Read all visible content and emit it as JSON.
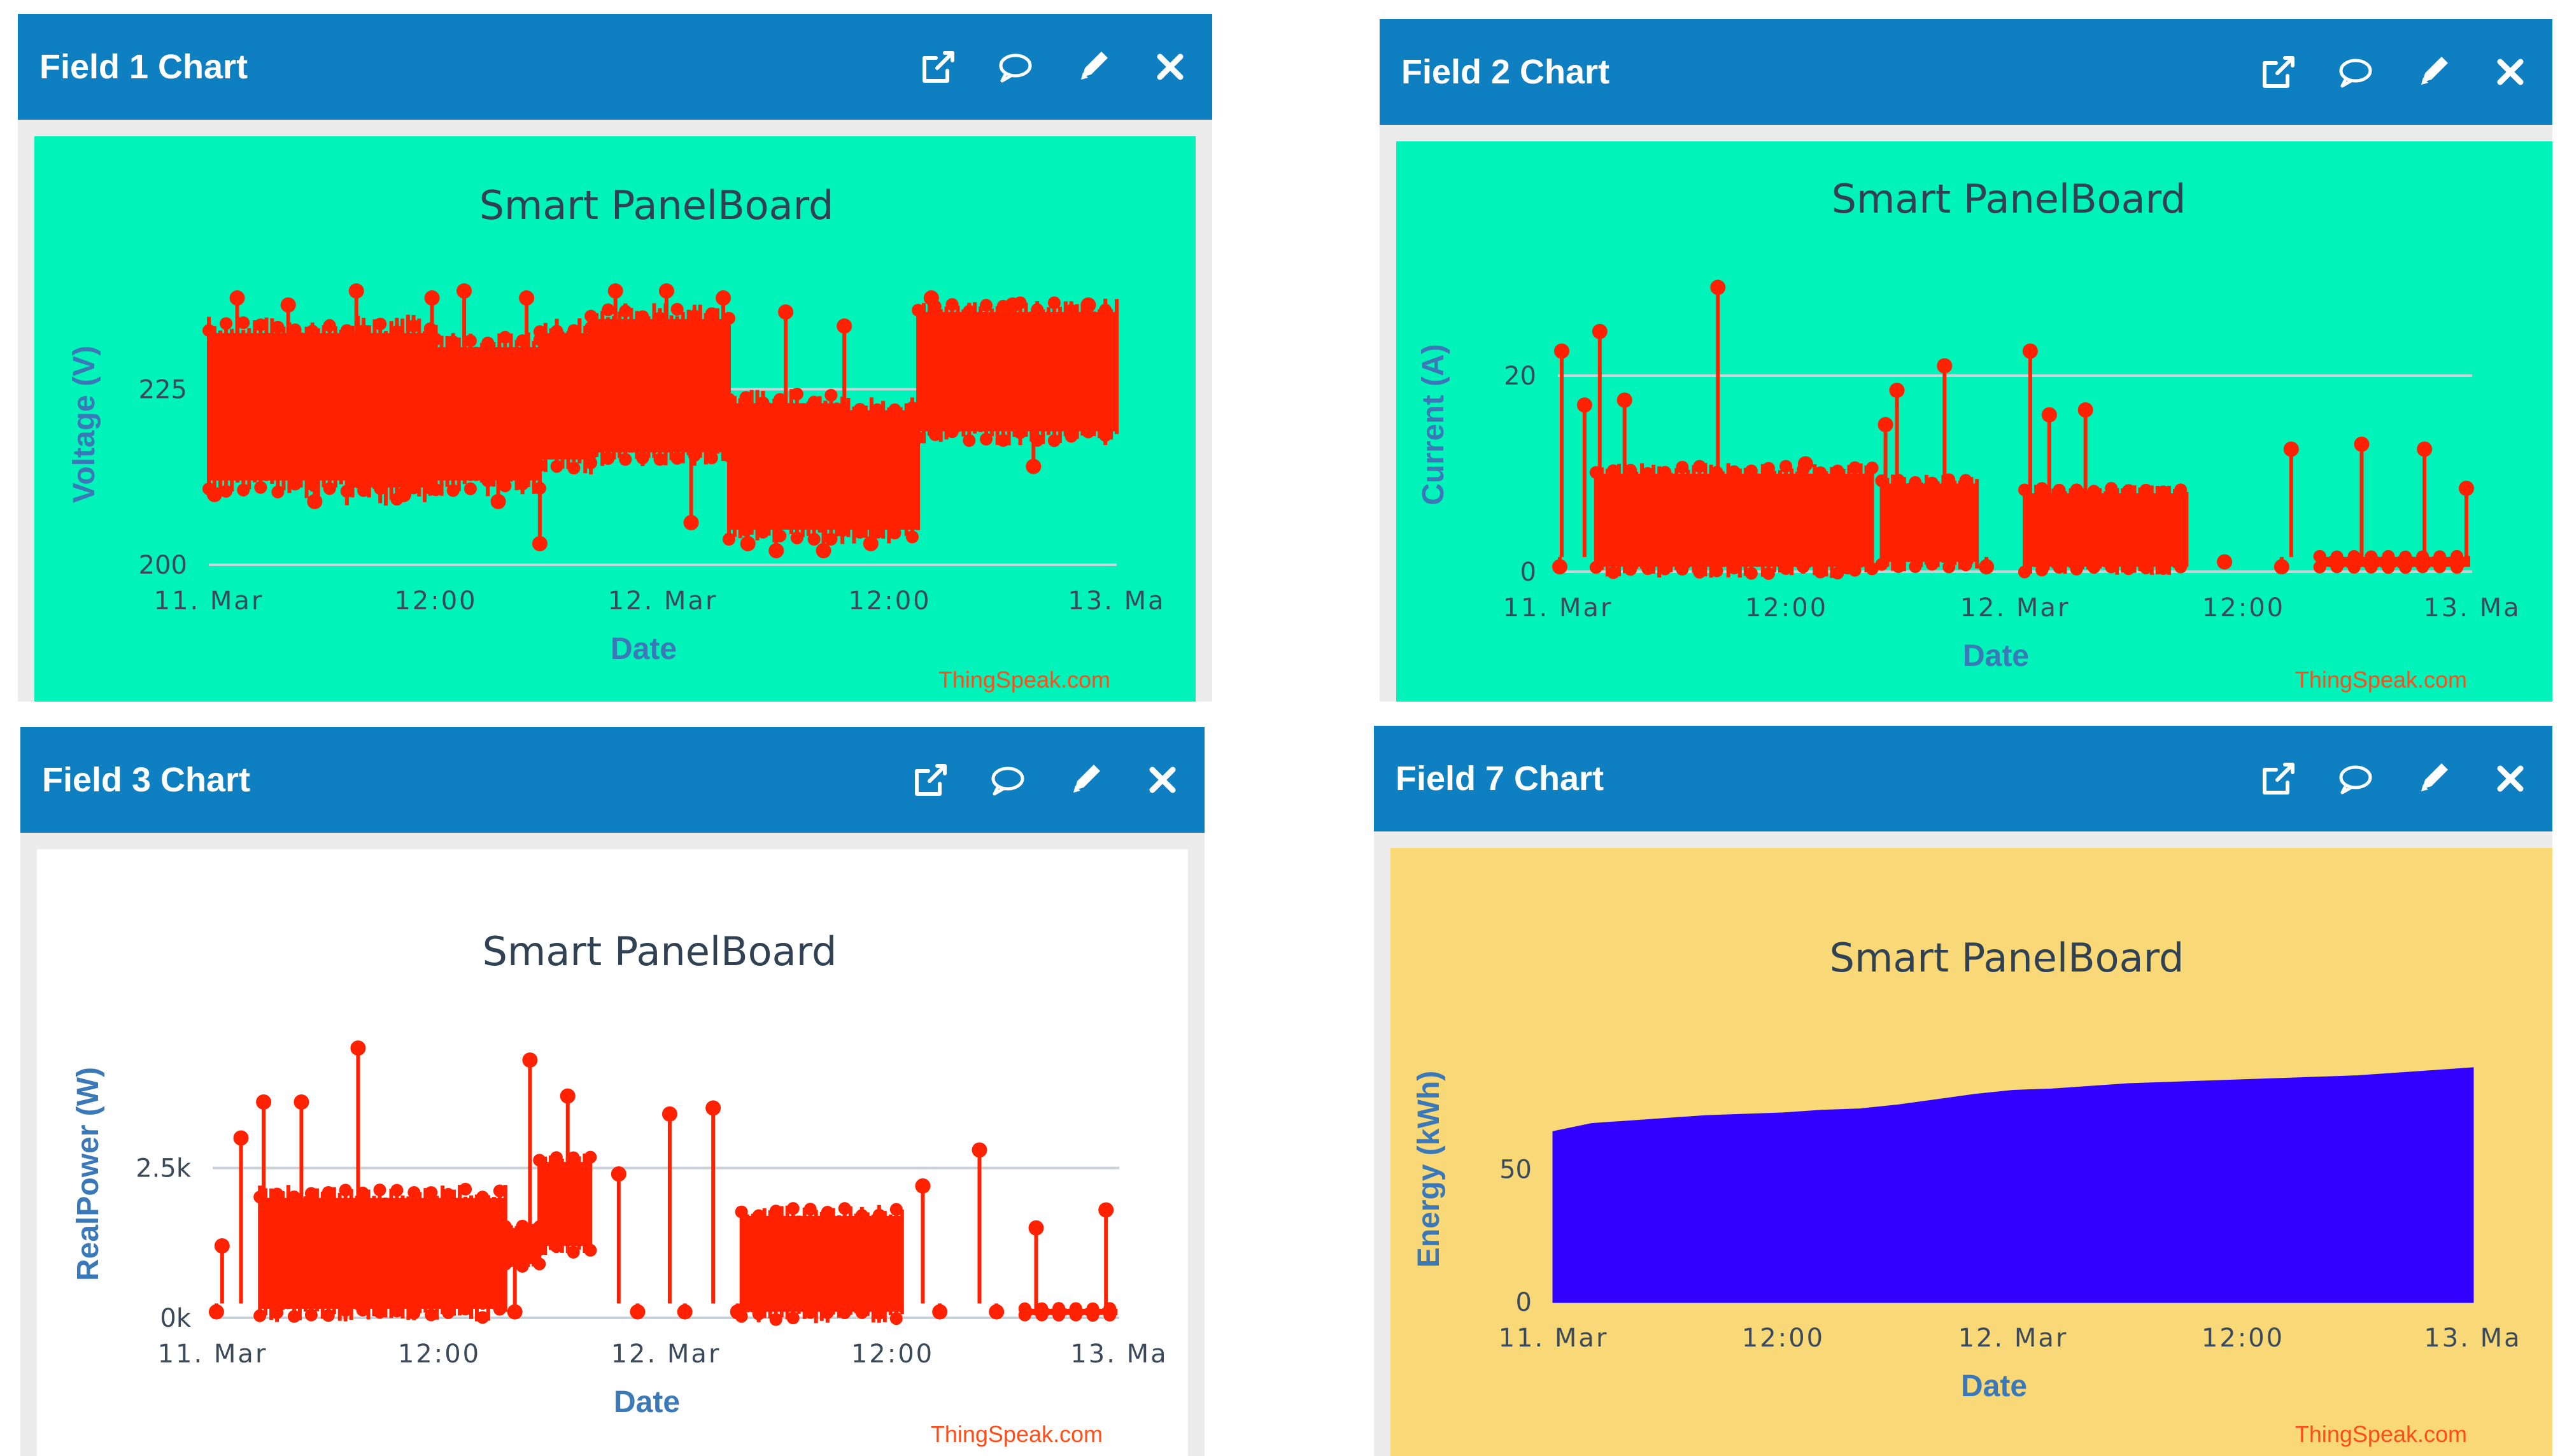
{
  "colors": {
    "header_bg": "#0e80c1",
    "green_bg": "#00f3b9",
    "white_bg": "#ffffff",
    "yellow_bg": "#f8d877",
    "series_red": "#ff2100",
    "series_blue": "#3200ff",
    "credit_red": "#ff4d1a",
    "axis_text": "#3b4a5a",
    "label_blue": "#3a78b8"
  },
  "header_icons": [
    "external-link-icon",
    "comment-icon",
    "pencil-icon",
    "close-icon"
  ],
  "widgets": [
    {
      "title": "Field 1 Chart",
      "chart_data": {
        "type": "line",
        "title": "Smart PanelBoard",
        "xlabel": "Date",
        "ylabel": "Voltage (V)",
        "x_ticks": [
          "11. Mar",
          "12:00",
          "12. Mar",
          "12:00",
          "13. Ma"
        ],
        "y_ticks": [
          {
            "label": "200",
            "value": 200
          },
          {
            "label": "225",
            "value": 225
          }
        ],
        "ylim": [
          200,
          240
        ],
        "xlim": [
          0,
          48
        ],
        "series": [
          {
            "name": "Voltage",
            "style": "dense-band",
            "segments": [
              {
                "x0": 0,
                "x1": 7.3,
                "low": 212,
                "high": 233
              },
              {
                "x0": 7.3,
                "x1": 12,
                "low": 211,
                "high": 233
              },
              {
                "x0": 12,
                "x1": 17.5,
                "low": 212,
                "high": 231
              },
              {
                "x0": 17.5,
                "x1": 20.2,
                "low": 215,
                "high": 233
              },
              {
                "x0": 20.2,
                "x1": 27.5,
                "low": 216,
                "high": 235
              },
              {
                "x0": 27.5,
                "x1": 33.5,
                "low": 205,
                "high": 223
              },
              {
                "x0": 33.5,
                "x1": 37.5,
                "low": 205,
                "high": 222
              },
              {
                "x0": 37.5,
                "x1": 48,
                "low": 219,
                "high": 236
              }
            ],
            "spikes": [
              [
                1.5,
                238
              ],
              [
                4.2,
                237
              ],
              [
                7.8,
                239
              ],
              [
                11.8,
                238
              ],
              [
                13.5,
                239
              ],
              [
                16.8,
                238
              ],
              [
                21.5,
                239
              ],
              [
                24.2,
                239
              ],
              [
                27.2,
                238
              ],
              [
                30.5,
                236
              ],
              [
                33.6,
                234
              ],
              [
                38.2,
                238
              ],
              [
                42.5,
                237
              ],
              [
                46.5,
                237
              ]
            ],
            "dips": [
              [
                0.3,
                210
              ],
              [
                5.6,
                209
              ],
              [
                10.3,
                210
              ],
              [
                15.3,
                209
              ],
              [
                17.5,
                203
              ],
              [
                25.5,
                206
              ],
              [
                28.5,
                203
              ],
              [
                30,
                202
              ],
              [
                32.5,
                202
              ],
              [
                35,
                203
              ],
              [
                37.2,
                207
              ],
              [
                43.6,
                214
              ]
            ]
          }
        ]
      }
    },
    {
      "title": "Field 2 Chart",
      "chart_data": {
        "type": "line",
        "title": "Smart PanelBoard",
        "xlabel": "Date",
        "ylabel": "Current (A)",
        "x_ticks": [
          "11. Mar",
          "12:00",
          "12. Mar",
          "12:00",
          "13. Ma"
        ],
        "y_ticks": [
          {
            "label": "0",
            "value": 0
          },
          {
            "label": "20",
            "value": 20
          }
        ],
        "ylim": [
          0,
          30
        ],
        "xlim": [
          0,
          48
        ],
        "series": [
          {
            "name": "Current",
            "style": "dense-band",
            "segments": [
              {
                "x0": 2,
                "x1": 16.5,
                "low": 0.5,
                "high": 10
              },
              {
                "x0": 17,
                "x1": 22,
                "low": 1,
                "high": 9
              },
              {
                "x0": 24.5,
                "x1": 33,
                "low": 0.5,
                "high": 8
              },
              {
                "x0": 40,
                "x1": 47.8,
                "low": 0.5,
                "high": 1.5
              }
            ],
            "spikes": [
              [
                0.2,
                22.5
              ],
              [
                1.4,
                17
              ],
              [
                2.2,
                24.5
              ],
              [
                3.5,
                17.5
              ],
              [
                8.4,
                29
              ],
              [
                13,
                11
              ],
              [
                17.2,
                15
              ],
              [
                17.8,
                18.5
              ],
              [
                20.3,
                21
              ],
              [
                24.8,
                22.5
              ],
              [
                25.8,
                16
              ],
              [
                27.7,
                16.5
              ],
              [
                38.5,
                12.5
              ],
              [
                42.2,
                13
              ],
              [
                45.5,
                12.5
              ],
              [
                47.7,
                8.5
              ]
            ],
            "dips": [
              [
                0.1,
                0.5
              ],
              [
                15.2,
                0.5
              ],
              [
                22.5,
                0.5
              ],
              [
                35,
                1
              ],
              [
                38,
                0.5
              ]
            ]
          }
        ]
      }
    },
    {
      "title": "Field 3 Chart",
      "chart_data": {
        "type": "line",
        "title": "Smart PanelBoard",
        "xlabel": "Date",
        "ylabel": "RealPower (W)",
        "x_ticks": [
          "11. Mar",
          "12:00",
          "12. Mar",
          "12:00",
          "13. Ma"
        ],
        "y_ticks": [
          {
            "label": "0k",
            "value": 0
          },
          {
            "label": "2.5k",
            "value": 2500
          }
        ],
        "ylim": [
          0,
          4800
        ],
        "xlim": [
          0,
          48
        ],
        "series": [
          {
            "name": "RealPower",
            "style": "dense-band",
            "segments": [
              {
                "x0": 2.5,
                "x1": 15.5,
                "low": 150,
                "high": 2000
              },
              {
                "x0": 15.5,
                "x1": 17.3,
                "low": 900,
                "high": 1500
              },
              {
                "x0": 17.3,
                "x1": 20,
                "low": 1200,
                "high": 2600
              },
              {
                "x0": 28,
                "x1": 36.5,
                "low": 100,
                "high": 1700
              },
              {
                "x0": 43,
                "x1": 47.8,
                "low": 50,
                "high": 150
              }
            ],
            "spikes": [
              [
                0.5,
                1200
              ],
              [
                1.5,
                3000
              ],
              [
                2.7,
                3600
              ],
              [
                4.7,
                3600
              ],
              [
                7.7,
                4500
              ],
              [
                16.8,
                4300
              ],
              [
                18.8,
                3700
              ],
              [
                21.5,
                2400
              ],
              [
                24.2,
                3400
              ],
              [
                26.5,
                3500
              ],
              [
                37.6,
                2200
              ],
              [
                40.6,
                2800
              ],
              [
                43.6,
                1500
              ],
              [
                47.3,
                1800
              ]
            ],
            "dips": [
              [
                0.2,
                100
              ],
              [
                16,
                100
              ],
              [
                22.5,
                100
              ],
              [
                25,
                100
              ],
              [
                27.8,
                100
              ],
              [
                38.5,
                100
              ],
              [
                41.5,
                100
              ]
            ]
          }
        ]
      }
    },
    {
      "title": "Field 7 Chart",
      "chart_data": {
        "type": "area",
        "title": "Smart PanelBoard",
        "xlabel": "Date",
        "ylabel": "Energy (kWh)",
        "x_ticks": [
          "11. Mar",
          "12:00",
          "12. Mar",
          "12:00",
          "13. Ma"
        ],
        "y_ticks": [
          {
            "label": "0",
            "value": 0
          },
          {
            "label": "50",
            "value": 50
          }
        ],
        "ylim": [
          0,
          100
        ],
        "xlim": [
          0,
          48
        ],
        "series": [
          {
            "name": "Energy",
            "x": [
              0,
              1,
              2,
              4,
              6,
              8,
              10,
              12,
              14,
              16,
              18,
              20,
              22,
              24,
              26,
              28,
              30,
              32,
              34,
              36,
              38,
              40,
              42,
              44,
              46,
              48
            ],
            "y": [
              64,
              65.5,
              67,
              68,
              69,
              70,
              70.5,
              71,
              72,
              72.5,
              74,
              76,
              78,
              79.5,
              80,
              81,
              82,
              82.5,
              83,
              83.5,
              84,
              84.5,
              85,
              86,
              87,
              88
            ]
          }
        ]
      }
    }
  ],
  "credit": "ThingSpeak.com"
}
